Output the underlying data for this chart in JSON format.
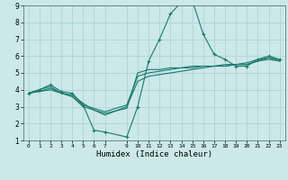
{
  "background_color": "#cce8e8",
  "grid_color": "#aed4d4",
  "line_color": "#1a7a6e",
  "xlabel": "Humidex (Indice chaleur)",
  "xlim": [
    -0.5,
    23.5
  ],
  "ylim": [
    1,
    9
  ],
  "xticks": [
    0,
    1,
    2,
    3,
    4,
    5,
    6,
    7,
    9,
    10,
    11,
    12,
    13,
    14,
    15,
    16,
    17,
    18,
    19,
    20,
    21,
    22,
    23
  ],
  "yticks": [
    1,
    2,
    3,
    4,
    5,
    6,
    7,
    8,
    9
  ],
  "series": [
    {
      "x": [
        0,
        1,
        2,
        3,
        4,
        5,
        6,
        7,
        9,
        10,
        11,
        12,
        13,
        14,
        15,
        16,
        17,
        18,
        19,
        20,
        21,
        22,
        23
      ],
      "y": [
        3.8,
        4.0,
        4.3,
        3.9,
        3.8,
        3.1,
        1.6,
        1.5,
        1.2,
        3.0,
        5.7,
        7.0,
        8.5,
        9.2,
        9.3,
        7.3,
        6.1,
        5.8,
        5.4,
        5.4,
        5.8,
        6.0,
        5.8
      ],
      "has_markers": true
    },
    {
      "x": [
        0,
        1,
        2,
        3,
        4,
        5,
        6,
        7,
        9,
        10,
        11,
        12,
        13,
        14,
        15,
        16,
        17,
        18,
        19,
        20,
        21,
        22,
        23
      ],
      "y": [
        3.8,
        4.0,
        4.2,
        3.8,
        3.7,
        3.2,
        2.8,
        2.5,
        3.0,
        4.5,
        4.8,
        4.9,
        5.0,
        5.1,
        5.2,
        5.3,
        5.4,
        5.5,
        5.5,
        5.6,
        5.8,
        5.9,
        5.8
      ],
      "has_markers": false
    },
    {
      "x": [
        0,
        1,
        2,
        3,
        4,
        5,
        6,
        7,
        9,
        10,
        11,
        12,
        13,
        14,
        15,
        16,
        17,
        18,
        19,
        20,
        21,
        22,
        23
      ],
      "y": [
        3.8,
        3.9,
        4.1,
        3.8,
        3.6,
        3.1,
        2.9,
        2.7,
        3.1,
        4.8,
        5.0,
        5.1,
        5.2,
        5.3,
        5.3,
        5.4,
        5.4,
        5.4,
        5.5,
        5.5,
        5.7,
        5.9,
        5.7
      ],
      "has_markers": false
    },
    {
      "x": [
        0,
        1,
        2,
        3,
        4,
        5,
        6,
        7,
        9,
        10,
        11,
        12,
        13,
        14,
        15,
        16,
        17,
        18,
        19,
        20,
        21,
        22,
        23
      ],
      "y": [
        3.8,
        3.9,
        4.0,
        3.8,
        3.6,
        3.0,
        2.8,
        2.6,
        2.9,
        5.0,
        5.2,
        5.2,
        5.3,
        5.3,
        5.4,
        5.4,
        5.4,
        5.4,
        5.5,
        5.5,
        5.7,
        5.8,
        5.7
      ],
      "has_markers": false
    }
  ]
}
